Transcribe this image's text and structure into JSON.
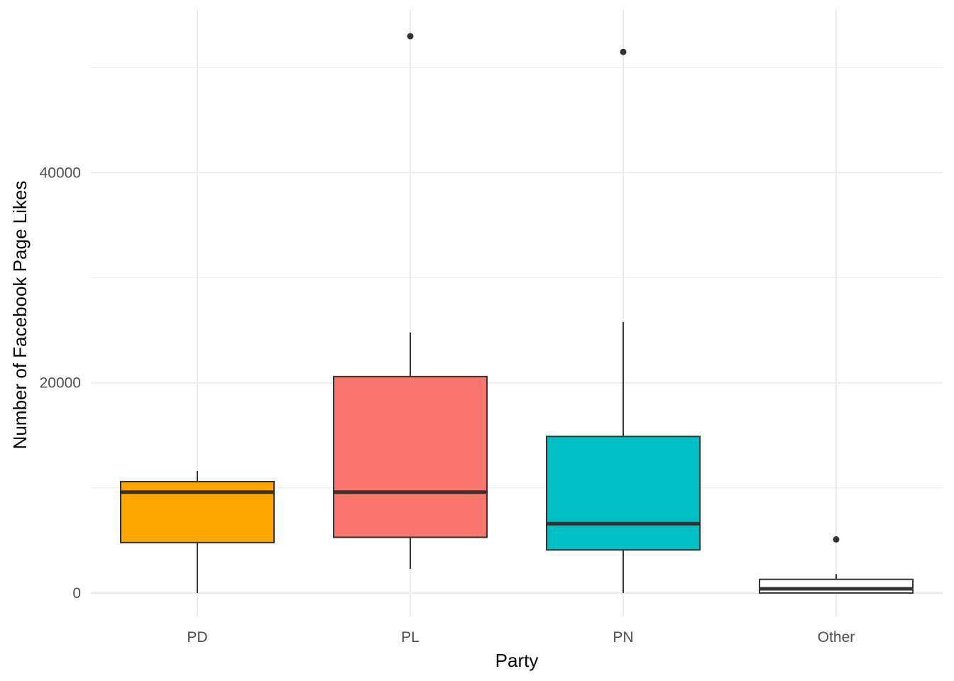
{
  "chart_data": {
    "type": "boxplot",
    "title": "",
    "xlabel": "Party",
    "ylabel": "Number of Facebook Page Likes",
    "ylim": [
      -2300,
      55500
    ],
    "y_ticks": [
      0,
      20000,
      40000
    ],
    "y_tick_labels": [
      "0",
      "20000",
      "40000"
    ],
    "grid": true,
    "legend": "none",
    "categories": [
      "PD",
      "PL",
      "PN",
      "Other"
    ],
    "boxes": [
      {
        "category": "PD",
        "color": "#FFA500",
        "whisker_low": 0,
        "q1": 4800,
        "median": 9600,
        "q3": 10600,
        "whisker_high": 11600,
        "outliers": []
      },
      {
        "category": "PL",
        "color": "#F8766D",
        "whisker_low": 2300,
        "q1": 5300,
        "median": 9600,
        "q3": 20600,
        "whisker_high": 24800,
        "outliers": [
          53000
        ]
      },
      {
        "category": "PN",
        "color": "#00BFC4",
        "whisker_low": 0,
        "q1": 4100,
        "median": 6600,
        "q3": 14900,
        "whisker_high": 25800,
        "outliers": [
          51500
        ]
      },
      {
        "category": "Other",
        "color": "#FFFFFF",
        "whisker_low": 0,
        "q1": 0,
        "median": 400,
        "q3": 1300,
        "whisker_high": 1800,
        "outliers": [
          5100
        ]
      }
    ]
  }
}
